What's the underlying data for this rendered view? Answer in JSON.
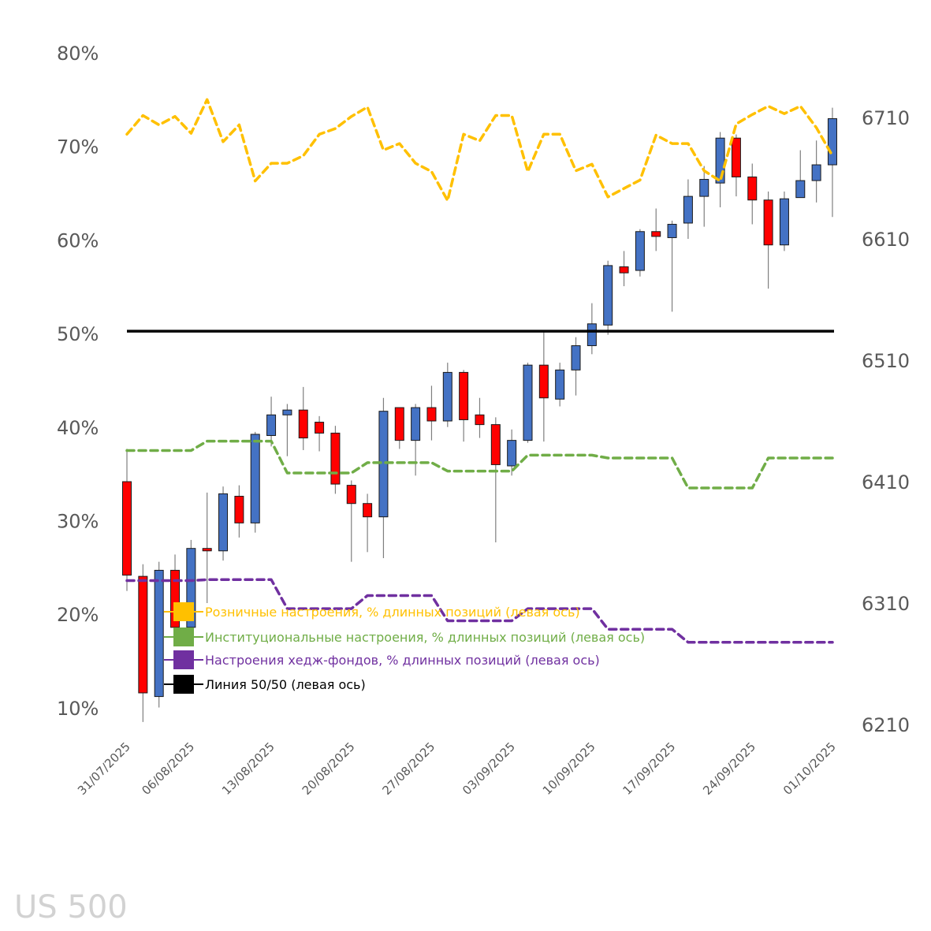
{
  "chart_data": {
    "type": "candlestick+line",
    "watermark": "US 500",
    "left_axis": {
      "ticks": [
        10,
        20,
        30,
        40,
        50,
        60,
        70,
        80
      ],
      "tick_labels": [
        "10%",
        "20%",
        "30%",
        "40%",
        "50%",
        "60%",
        "70%",
        "80%"
      ]
    },
    "right_axis": {
      "ticks": [
        6210,
        6310,
        6410,
        6510,
        6610,
        6710
      ],
      "tick_labels": [
        "6210",
        "6310",
        "6410",
        "6510",
        "6610",
        "6710"
      ]
    },
    "x_tick_labels": [
      {
        "index": 0,
        "label": "31/07/2025"
      },
      {
        "index": 4,
        "label": "06/08/2025"
      },
      {
        "index": 9,
        "label": "13/08/2025"
      },
      {
        "index": 14,
        "label": "20/08/2025"
      },
      {
        "index": 19,
        "label": "27/08/2025"
      },
      {
        "index": 24,
        "label": "03/09/2025"
      },
      {
        "index": 29,
        "label": "10/09/2025"
      },
      {
        "index": 34,
        "label": "17/09/2025"
      },
      {
        "index": 39,
        "label": "24/09/2025"
      },
      {
        "index": 44,
        "label": "01/10/2025"
      }
    ],
    "candles_ohlc": [
      [
        6410,
        6437,
        6320,
        6333
      ],
      [
        6332,
        6342,
        6212,
        6236
      ],
      [
        6233,
        6344,
        6224,
        6337
      ],
      [
        6337,
        6350,
        6286,
        6290
      ],
      [
        6290,
        6362,
        6288,
        6355
      ],
      [
        6355,
        6401,
        6310,
        6353
      ],
      [
        6353,
        6406,
        6345,
        6400
      ],
      [
        6398,
        6407,
        6364,
        6376
      ],
      [
        6376,
        6451,
        6368,
        6449
      ],
      [
        6448,
        6480,
        6439,
        6465
      ],
      [
        6465,
        6474,
        6431,
        6469
      ],
      [
        6469,
        6488,
        6436,
        6446
      ],
      [
        6459,
        6464,
        6435,
        6450
      ],
      [
        6450,
        6456,
        6400,
        6408
      ],
      [
        6407,
        6411,
        6344,
        6392
      ],
      [
        6392,
        6400,
        6352,
        6381
      ],
      [
        6381,
        6479,
        6347,
        6468
      ],
      [
        6471,
        6471,
        6437,
        6444
      ],
      [
        6444,
        6474,
        6415,
        6471
      ],
      [
        6471,
        6489,
        6444,
        6460
      ],
      [
        6460,
        6508,
        6455,
        6500
      ],
      [
        6500,
        6502,
        6443,
        6461
      ],
      [
        6465,
        6479,
        6446,
        6457
      ],
      [
        6457,
        6463,
        6360,
        6424
      ],
      [
        6423,
        6453,
        6415,
        6444
      ],
      [
        6444,
        6508,
        6442,
        6506
      ],
      [
        6506,
        6533,
        6443,
        6479
      ],
      [
        6478,
        6508,
        6472,
        6502
      ],
      [
        6502,
        6529,
        6481,
        6522
      ],
      [
        6522,
        6557,
        6515,
        6540
      ],
      [
        6539,
        6592,
        6531,
        6588
      ],
      [
        6587,
        6600,
        6571,
        6582
      ],
      [
        6584,
        6618,
        6579,
        6616
      ],
      [
        6616,
        6635,
        6600,
        6612
      ],
      [
        6611,
        6625,
        6550,
        6622
      ],
      [
        6623,
        6659,
        6610,
        6645
      ],
      [
        6645,
        6670,
        6620,
        6659
      ],
      [
        6656,
        6698,
        6636,
        6693
      ],
      [
        6693,
        6696,
        6645,
        6661
      ],
      [
        6661,
        6672,
        6622,
        6642
      ],
      [
        6642,
        6649,
        6569,
        6605
      ],
      [
        6605,
        6649,
        6600,
        6643
      ],
      [
        6644,
        6683,
        6644,
        6658
      ],
      [
        6658,
        6691,
        6640,
        6671
      ],
      [
        6671,
        6718,
        6628,
        6709
      ]
    ],
    "series": [
      {
        "name": "Розничные настроения, % длинных позиций (левая ось)",
        "color": "#FFC000",
        "style": "dashed",
        "values": [
          71.3,
          73.3,
          72.3,
          73.2,
          71.4,
          75.0,
          70.5,
          72.3,
          66.3,
          68.2,
          68.2,
          69.0,
          71.3,
          71.9,
          73.2,
          74.2,
          69.6,
          70.3,
          68.2,
          67.3,
          64.2,
          71.3,
          70.6,
          73.3,
          73.3,
          67.3,
          71.3,
          71.3,
          67.4,
          68.1,
          64.6,
          65.5,
          66.4,
          71.2,
          70.3,
          70.3,
          67.4,
          66.3,
          72.4,
          73.4,
          74.3,
          73.5,
          74.3,
          72.0,
          69.0
        ]
      },
      {
        "name": "Институциональные настроения, % длинных позиций (левая ось)",
        "color": "#70AD47",
        "style": "dashed",
        "values": [
          37.5,
          37.5,
          37.5,
          37.5,
          37.5,
          38.5,
          38.5,
          38.5,
          38.5,
          38.5,
          35.1,
          35.1,
          35.1,
          35.1,
          35.1,
          36.2,
          36.2,
          36.2,
          36.2,
          36.2,
          35.3,
          35.3,
          35.3,
          35.3,
          35.3,
          37.0,
          37.0,
          37.0,
          37.0,
          37.0,
          36.7,
          36.7,
          36.7,
          36.7,
          36.7,
          33.5,
          33.5,
          33.5,
          33.5,
          33.5,
          36.7,
          36.7,
          36.7,
          36.7,
          36.7
        ]
      },
      {
        "name": "Настроения хедж-фондов, % длинных позиций (левая ось)",
        "color": "#7030A0",
        "style": "dashed",
        "values": [
          23.6,
          23.6,
          23.6,
          23.6,
          23.6,
          23.7,
          23.7,
          23.7,
          23.7,
          23.7,
          20.6,
          20.6,
          20.6,
          20.6,
          20.6,
          22.0,
          22.0,
          22.0,
          22.0,
          22.0,
          19.3,
          19.3,
          19.3,
          19.3,
          19.3,
          20.6,
          20.6,
          20.6,
          20.6,
          20.6,
          18.4,
          18.4,
          18.4,
          18.4,
          18.4,
          17.0,
          17.0,
          17.0,
          17.0,
          17.0,
          17.0,
          17.0,
          17.0,
          17.0,
          17.0
        ]
      },
      {
        "name": "Линия 50/50 (левая ось)",
        "color": "#000000",
        "style": "solid",
        "value": 50
      }
    ],
    "colors": {
      "bull": "#4472C4",
      "bear": "#FF0000",
      "wick": "#7F7F7F"
    },
    "legend_placement": "bottom-left inside"
  }
}
